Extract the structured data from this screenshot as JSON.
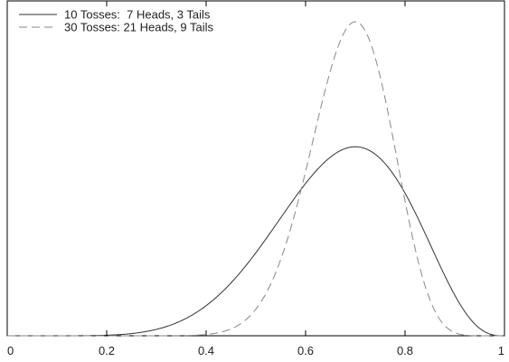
{
  "chart_data": {
    "type": "line",
    "title": "",
    "xlabel": "",
    "ylabel": "",
    "xlim": [
      0,
      1
    ],
    "ylim": [
      0,
      5.2
    ],
    "grid": false,
    "legend_position": "top-left",
    "x_ticks": [
      "0",
      "0.2",
      "0.4",
      "0.6",
      "0.8",
      "1"
    ],
    "series": [
      {
        "name": "10 Tosses:  7 Heads, 3 Tails",
        "style": "solid",
        "color": "#333333",
        "distribution": {
          "family": "beta",
          "alpha": 8,
          "beta": 4
        }
      },
      {
        "name": "30 Tosses: 21 Heads, 9 Tails",
        "style": "dashed",
        "color": "#888888",
        "distribution": {
          "family": "beta",
          "alpha": 22,
          "beta": 10
        }
      }
    ]
  }
}
